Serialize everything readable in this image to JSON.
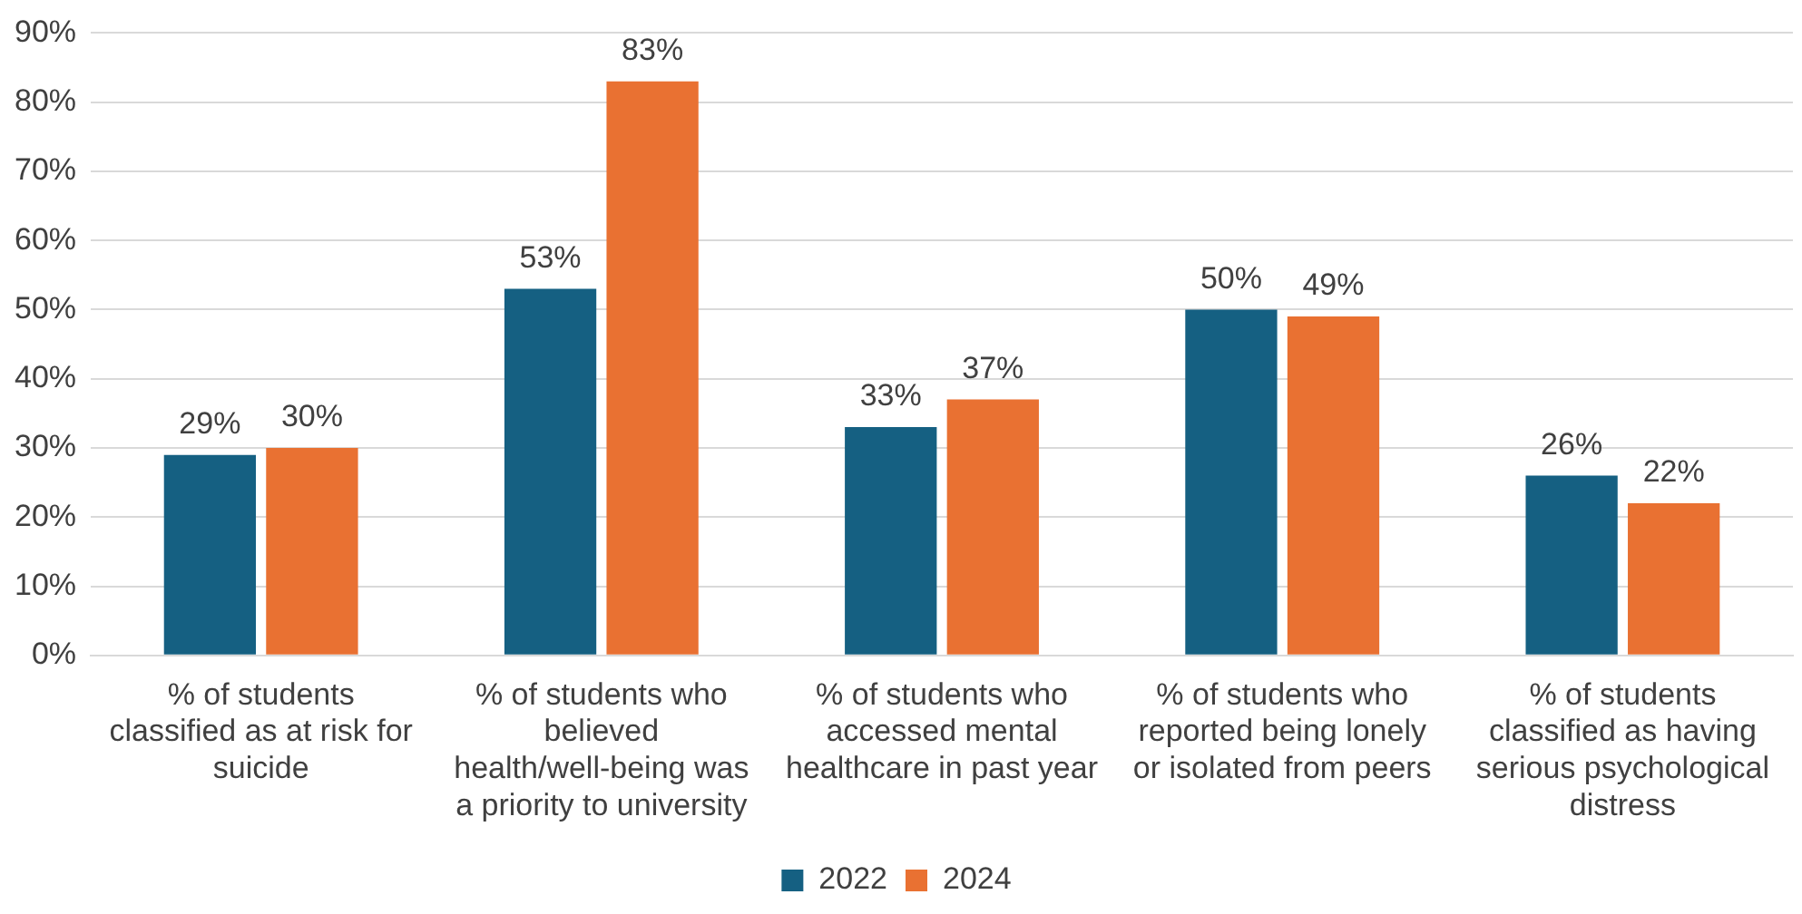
{
  "chart_data": {
    "type": "bar",
    "categories": [
      "% of students classified as at risk for suicide",
      "% of students who believed health/well-being was a priority to university",
      "% of students who accessed mental healthcare in past year",
      "% of students who reported being lonely or isolated from peers",
      "% of students classified as having serious psychological distress"
    ],
    "series": [
      {
        "name": "2022",
        "color": "#156082",
        "values": [
          29,
          53,
          33,
          50,
          26
        ],
        "value_labels": [
          "29%",
          "53%",
          "33%",
          "50%",
          "26%"
        ]
      },
      {
        "name": "2024",
        "color": "#e97132",
        "values": [
          30,
          83,
          37,
          49,
          22
        ],
        "value_labels": [
          "30%",
          "83%",
          "37%",
          "49%",
          "22%"
        ]
      }
    ],
    "ylim": [
      0,
      90
    ],
    "yticks": [
      {
        "value": 0,
        "label": "0%"
      },
      {
        "value": 10,
        "label": "10%"
      },
      {
        "value": 20,
        "label": "20%"
      },
      {
        "value": 30,
        "label": "30%"
      },
      {
        "value": 40,
        "label": "40%"
      },
      {
        "value": 50,
        "label": "50%"
      },
      {
        "value": 60,
        "label": "60%"
      },
      {
        "value": 70,
        "label": "70%"
      },
      {
        "value": 80,
        "label": "80%"
      },
      {
        "value": 90,
        "label": "90%"
      }
    ],
    "grid": "y",
    "legend": "bottom"
  }
}
